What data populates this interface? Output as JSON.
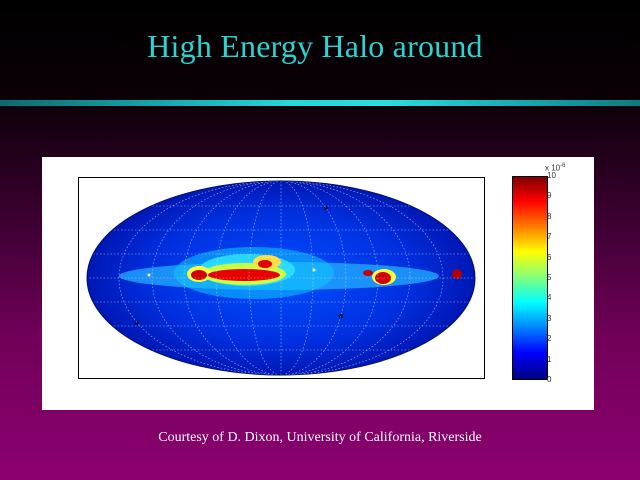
{
  "slide": {
    "title": "High Energy Halo around",
    "credit": "Courtesy of D. Dixon, University of California, Riverside"
  },
  "figure": {
    "type": "heatmap",
    "projection": "all-sky map",
    "colormap": "jet",
    "colorbar": {
      "multiplier_base": "x 10",
      "multiplier_exp": "-6",
      "range": [
        0,
        10
      ],
      "ticks": [
        "0",
        "1",
        "2",
        "3",
        "4",
        "5",
        "6",
        "7",
        "8",
        "9",
        "10"
      ]
    }
  },
  "colors": {
    "title": "#2ad4d0",
    "credit": "#ffffff"
  }
}
